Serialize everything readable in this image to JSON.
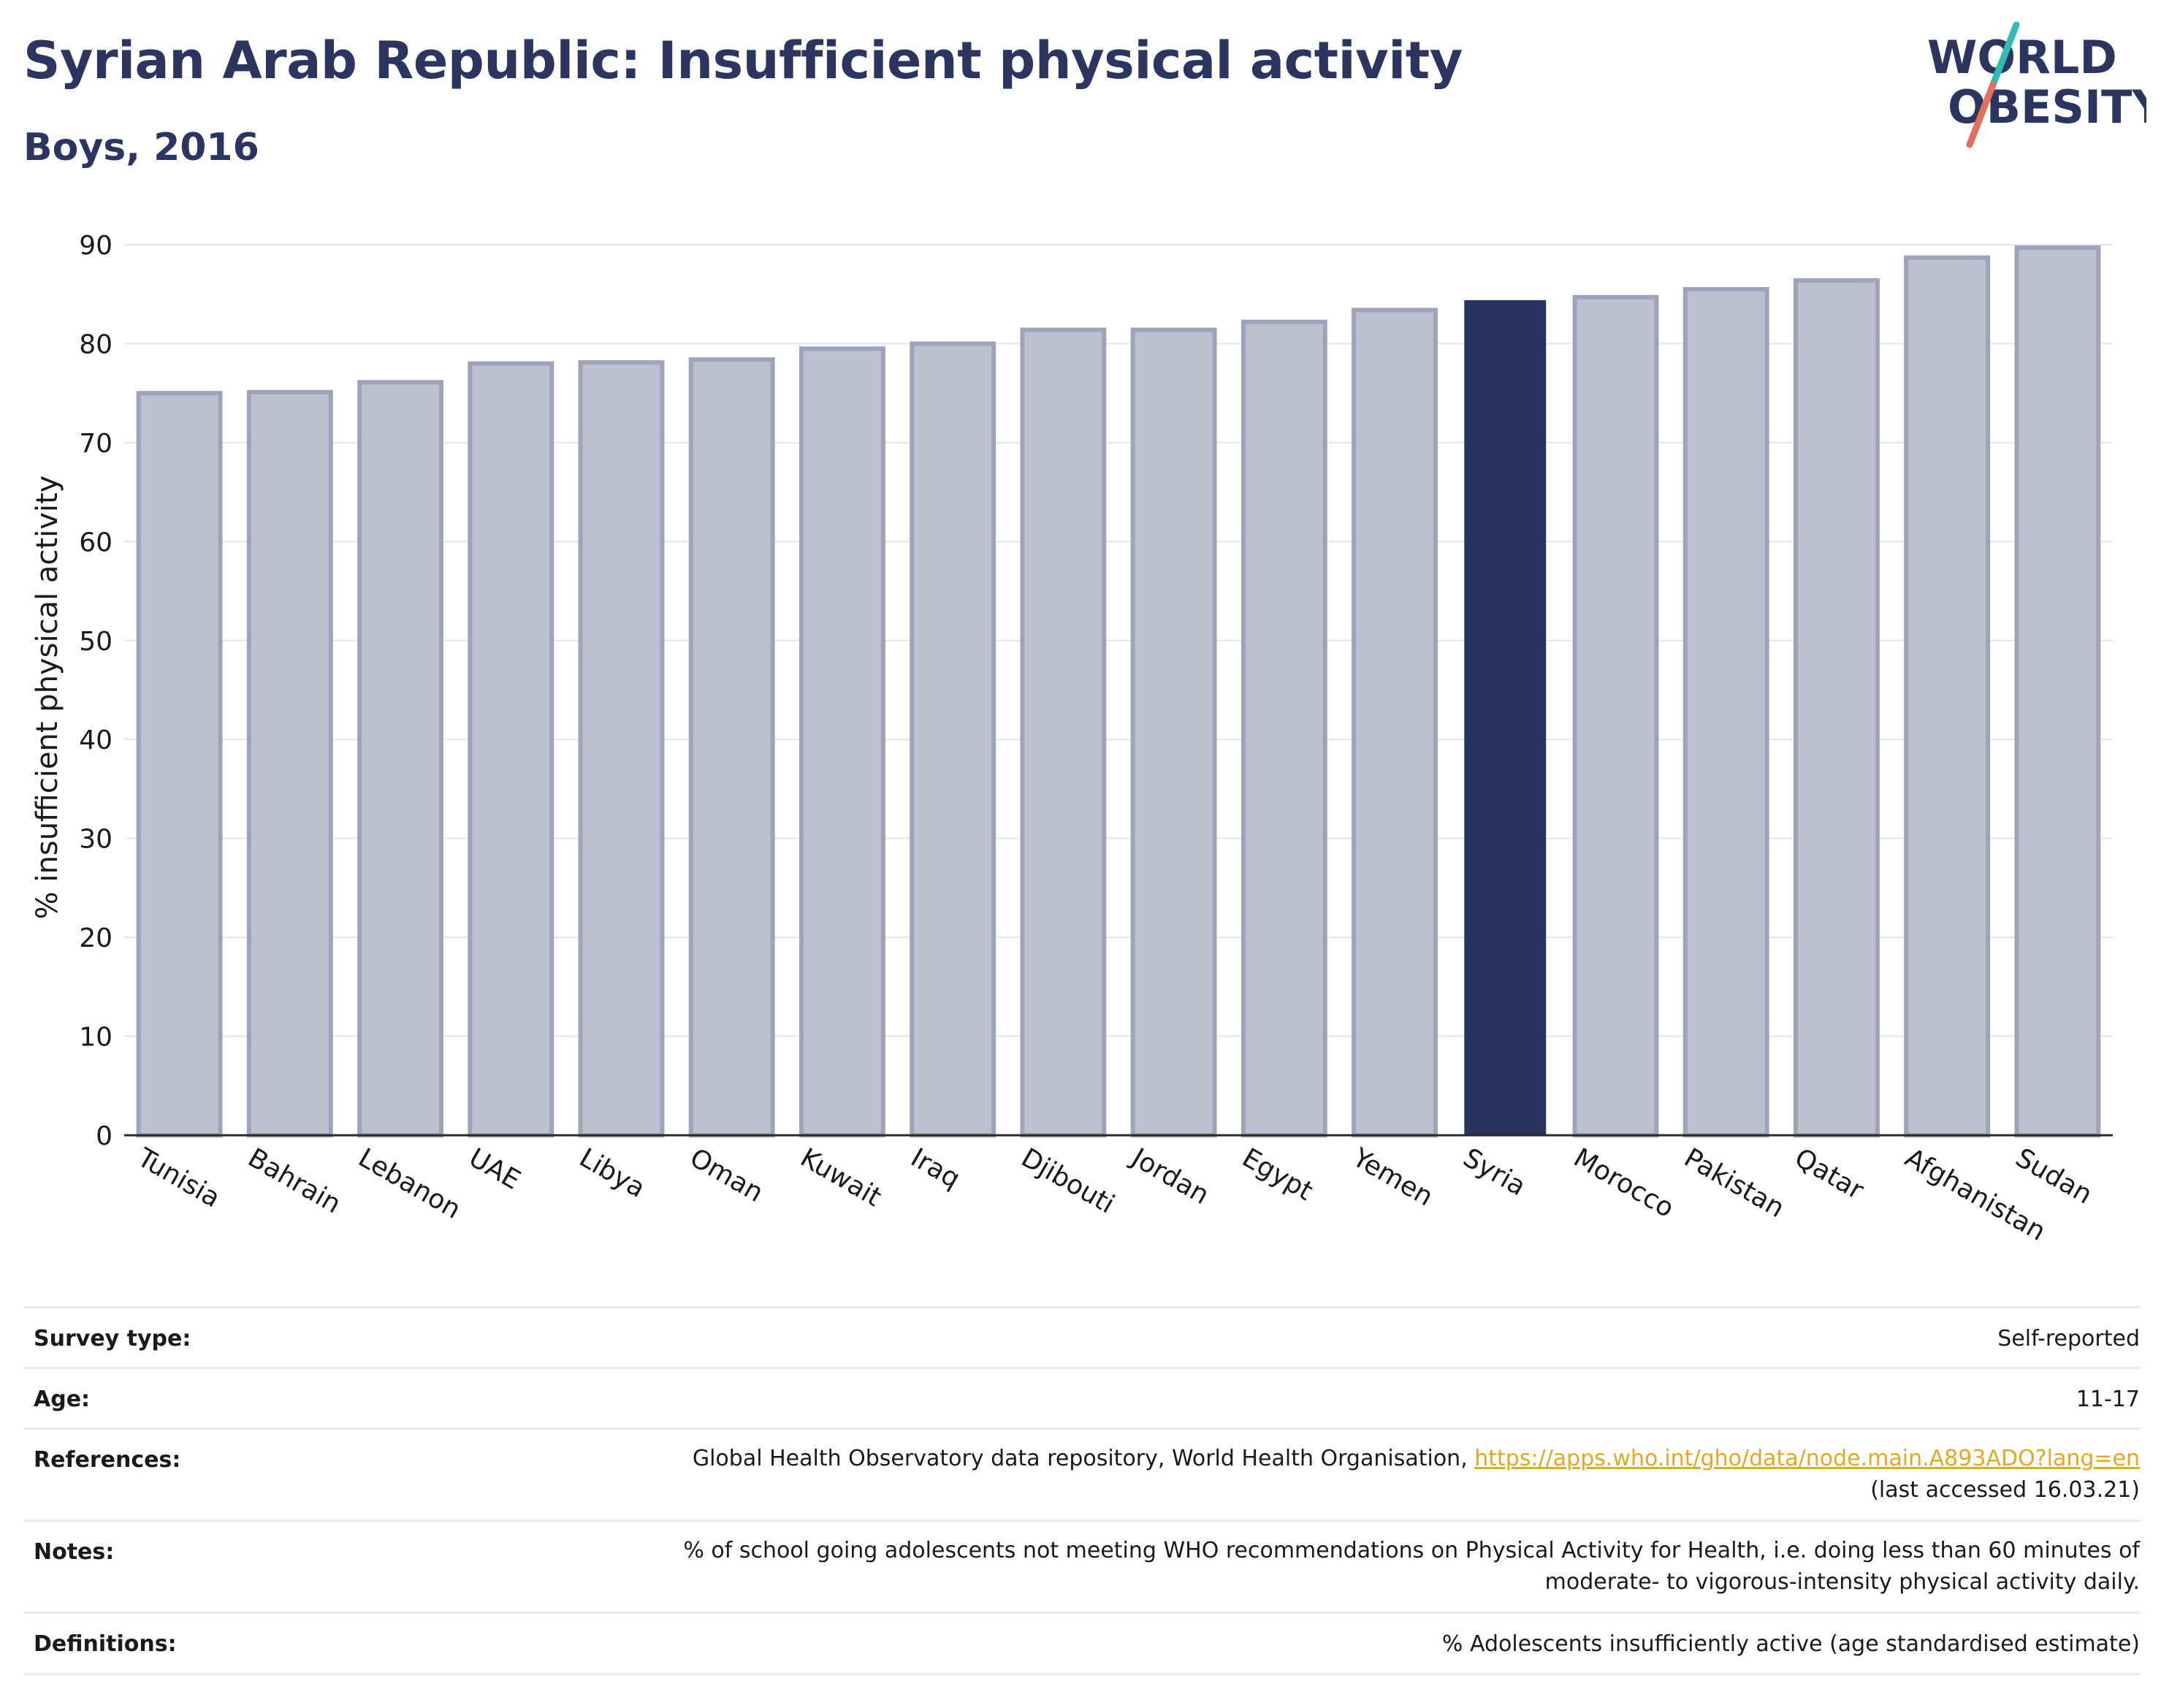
{
  "header": {
    "title": "Syrian Arab Republic: Insufficient physical activity",
    "subtitle": "Boys, 2016"
  },
  "logo": {
    "line1": "WORLD",
    "line2": "OBESITY",
    "colors": {
      "text": "#2a3560",
      "slash_top": "#2ebcb4",
      "slash_bottom": "#e76c5a"
    }
  },
  "colors": {
    "bar": "#bdc0cf",
    "bar_outline": "#9ea3bb",
    "highlight": "#283460",
    "gridline": "#e3e6ee",
    "axis": "#2a2a2a",
    "link": "#e5a81e"
  },
  "chart_data": {
    "type": "bar",
    "title": "Syrian Arab Republic: Insufficient physical activity",
    "subtitle": "Boys, 2016",
    "xlabel": "",
    "ylabel": "% insufficient physical activity",
    "ylim": [
      0,
      90
    ],
    "yticks": [
      0,
      10,
      20,
      30,
      40,
      50,
      60,
      70,
      80,
      90
    ],
    "grid": true,
    "highlight": "Syria",
    "categories": [
      "Tunisia",
      "Bahrain",
      "Lebanon",
      "UAE",
      "Libya",
      "Oman",
      "Kuwait",
      "Iraq",
      "Djibouti",
      "Jordan",
      "Egypt",
      "Yemen",
      "Syria",
      "Morocco",
      "Pakistan",
      "Qatar",
      "Afghanistan",
      "Sudan"
    ],
    "values": [
      75.0,
      75.1,
      76.1,
      78.0,
      78.1,
      78.4,
      79.5,
      80.0,
      81.4,
      81.4,
      82.2,
      83.4,
      84.4,
      84.7,
      85.5,
      86.4,
      88.7,
      89.7
    ]
  },
  "info": [
    {
      "key": "Survey type:",
      "value": "Self-reported"
    },
    {
      "key": "Age:",
      "value": "11-17"
    },
    {
      "key": "References:",
      "value": "Global Health Observatory data repository, World Health Organisation, ",
      "link": "https://apps.who.int/gho/data/node.main.A893ADO?lang=en",
      "value2": "(last accessed 16.03.21)"
    },
    {
      "key": "Notes:",
      "value": "% of school going adolescents not meeting WHO recommendations on Physical Activity for Health, i.e. doing less than 60 minutes of",
      "value2": "moderate- to vigorous-intensity physical activity daily."
    },
    {
      "key": "Definitions:",
      "value": "% Adolescents insufficiently active (age standardised estimate)"
    }
  ]
}
